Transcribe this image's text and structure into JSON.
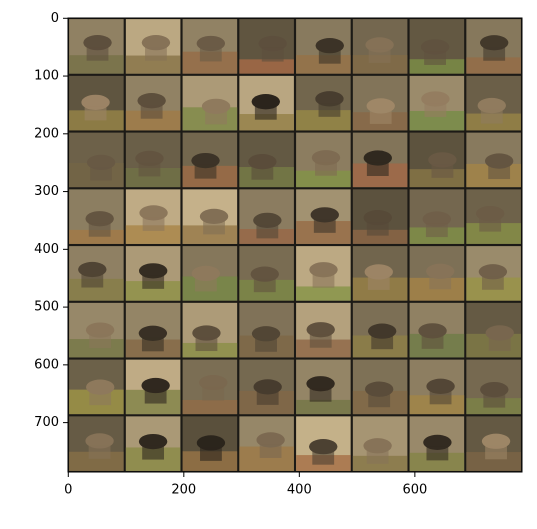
{
  "chart_data": {
    "type": "image",
    "xlim": [
      -0.5,
      785.5
    ],
    "ylim": [
      785.5,
      -0.5
    ],
    "xticks": [
      0,
      200,
      400,
      600
    ],
    "yticks": [
      0,
      100,
      200,
      300,
      400,
      500,
      600,
      700
    ]
  }
}
